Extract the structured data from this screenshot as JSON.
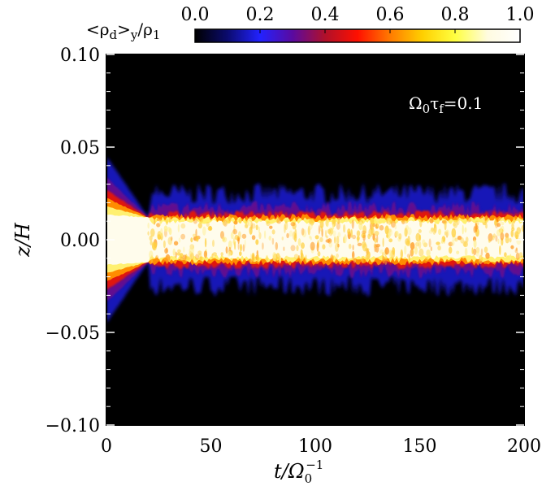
{
  "chart_data": {
    "type": "heatmap",
    "colorbar": {
      "label": "<ρd>y/ρ1",
      "label_parts": {
        "open": "<ρ",
        "sub1": "d",
        "close": ">",
        "sub2": "y",
        "slash": "/ρ",
        "sub3": "1"
      },
      "ticks": [
        "0.0",
        "0.2",
        "0.4",
        "0.6",
        "0.8",
        "1.0"
      ],
      "range": [
        0.0,
        1.0
      ],
      "colormap": [
        "#000000",
        "#0b0b6e",
        "#2222ff",
        "#5a0aa0",
        "#b0102a",
        "#ff1000",
        "#ff7a00",
        "#ffd000",
        "#ffff40",
        "#fffbe0",
        "#ffffff"
      ]
    },
    "x_axis": {
      "label": "t/Ω0−1",
      "label_main": "t/Ω",
      "label_sub": "0",
      "label_sup": "−1",
      "range": [
        0,
        200
      ],
      "ticks": [
        0,
        50,
        100,
        150,
        200
      ],
      "tick_labels": [
        "0",
        "50",
        "100",
        "150",
        "200"
      ]
    },
    "y_axis": {
      "label": "z/H",
      "range": [
        -0.1,
        0.1
      ],
      "ticks": [
        0.1,
        0.05,
        0.0,
        -0.05,
        -0.1
      ],
      "tick_labels": [
        "0.10",
        "0.05",
        "0.00",
        "−0.05",
        "−0.10"
      ]
    },
    "annotation": {
      "text": "Ω0τf=0.1",
      "parts": {
        "a": "Ω",
        "s1": "0",
        "b": "τ",
        "s2": "f",
        "c": "=0.1"
      }
    },
    "layer_profile": {
      "description_values_in_data_units": true,
      "initial_half_width_z": 0.045,
      "pinch_time": 20,
      "pinch_half_width_z": 0.012,
      "saturated_half_width_z": 0.011,
      "red_edge_half_width_z": 0.014,
      "blue_halo_half_width_z": 0.025
    }
  }
}
